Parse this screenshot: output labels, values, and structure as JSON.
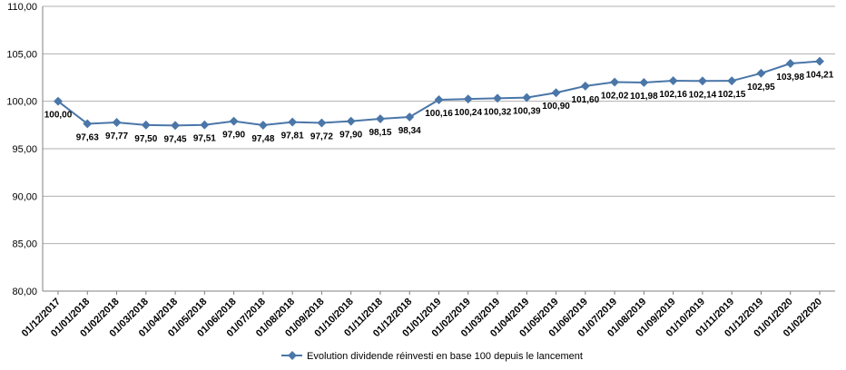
{
  "chart_data": {
    "type": "line",
    "title": "",
    "xlabel": "",
    "ylabel": "",
    "ylim": [
      80,
      110
    ],
    "yticks": [
      "80,00",
      "85,00",
      "90,00",
      "95,00",
      "100,00",
      "105,00",
      "110,00"
    ],
    "grid": "horizontal",
    "legend_position": "bottom",
    "categories": [
      "01/12/2017",
      "01/01/2018",
      "01/02/2018",
      "01/03/2018",
      "01/04/2018",
      "01/05/2018",
      "01/06/2018",
      "01/07/2018",
      "01/08/2018",
      "01/09/2018",
      "01/10/2018",
      "01/11/2018",
      "01/12/2018",
      "01/01/2019",
      "01/02/2019",
      "01/03/2019",
      "01/04/2019",
      "01/05/2019",
      "01/06/2019",
      "01/07/2019",
      "01/08/2019",
      "01/09/2019",
      "01/10/2019",
      "01/11/2019",
      "01/12/2019",
      "01/01/2020",
      "01/02/2020"
    ],
    "series": [
      {
        "name": "Evolution dividende réinvesti en base 100 depuis le lancement",
        "color": "#4a76a8",
        "values": [
          100.0,
          97.63,
          97.77,
          97.5,
          97.45,
          97.51,
          97.9,
          97.48,
          97.81,
          97.72,
          97.9,
          98.15,
          98.34,
          100.16,
          100.24,
          100.32,
          100.39,
          100.9,
          101.6,
          102.02,
          101.98,
          102.16,
          102.14,
          102.15,
          102.95,
          103.98,
          104.21
        ],
        "labels": [
          "100,00",
          "97,63",
          "97,77",
          "97,50",
          "97,45",
          "97,51",
          "97,90",
          "97,48",
          "97,81",
          "97,72",
          "97,90",
          "98,15",
          "98,34",
          "100,16",
          "100,24",
          "100,32",
          "100,39",
          "100,90",
          "101,60",
          "102,02",
          "101,98",
          "102,16",
          "102,14",
          "102,15",
          "102,95",
          "103,98",
          "104,21"
        ]
      }
    ]
  }
}
